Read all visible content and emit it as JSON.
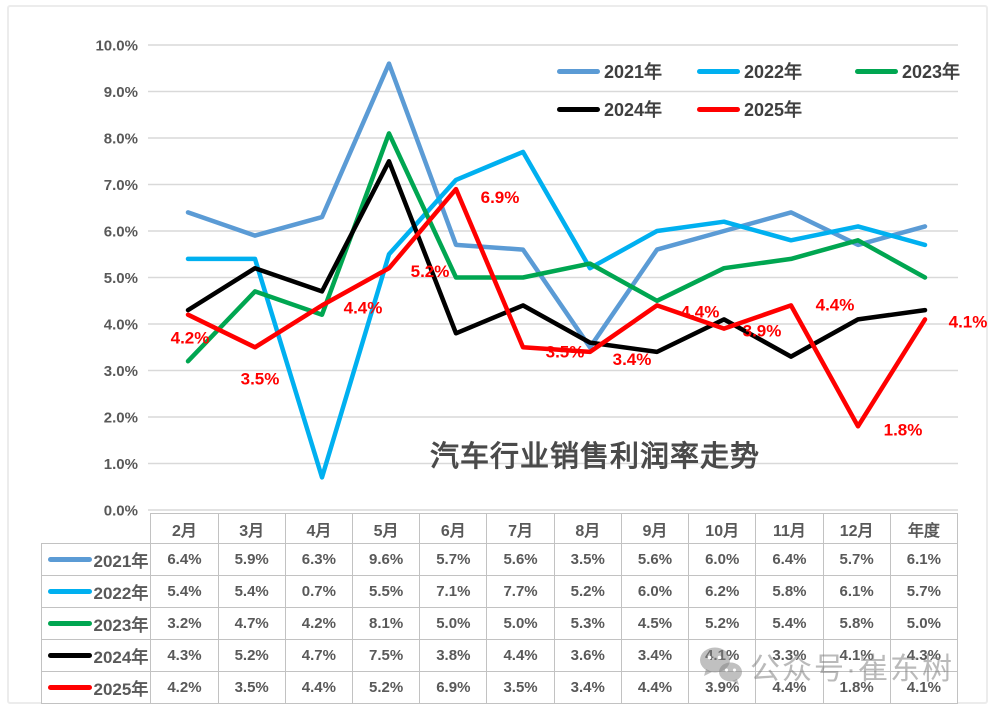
{
  "chart_data": {
    "type": "line",
    "title": "汽车行业销售利润率走势",
    "categories": [
      "2月",
      "3月",
      "4月",
      "5月",
      "6月",
      "7月",
      "8月",
      "9月",
      "10月",
      "11月",
      "12月",
      "年度"
    ],
    "y_axis": {
      "min": 0,
      "max": 10,
      "tick_labels": [
        "0.0%",
        "1.0%",
        "2.0%",
        "3.0%",
        "4.0%",
        "5.0%",
        "6.0%",
        "7.0%",
        "8.0%",
        "9.0%",
        "10.0%"
      ]
    },
    "grid": true,
    "legend_position": "top-right-inside-two-rows",
    "series": [
      {
        "name": "2021年",
        "color": "#5B9BD5",
        "values": [
          6.4,
          5.9,
          6.3,
          9.6,
          5.7,
          5.6,
          3.5,
          5.6,
          6.0,
          6.4,
          5.7,
          6.1
        ]
      },
      {
        "name": "2022年",
        "color": "#00B0F0",
        "values": [
          5.4,
          5.4,
          0.7,
          5.5,
          7.1,
          7.7,
          5.2,
          6.0,
          6.2,
          5.8,
          6.1,
          5.7
        ]
      },
      {
        "name": "2023年",
        "color": "#00A651",
        "values": [
          3.2,
          4.7,
          4.2,
          8.1,
          5.0,
          5.0,
          5.3,
          4.5,
          5.2,
          5.4,
          5.8,
          5.0
        ]
      },
      {
        "name": "2024年",
        "color": "#000000",
        "values": [
          4.3,
          5.2,
          4.7,
          7.5,
          3.8,
          4.4,
          3.6,
          3.4,
          4.1,
          3.3,
          4.1,
          4.3
        ]
      },
      {
        "name": "2025年",
        "color": "#FF0000",
        "values": [
          4.2,
          3.5,
          4.4,
          5.2,
          6.9,
          3.5,
          3.4,
          4.4,
          3.9,
          4.4,
          1.8,
          4.1
        ]
      }
    ],
    "data_labels": {
      "series": "2025年",
      "color": "#FF0000",
      "labels": [
        "4.2%",
        "3.5%",
        "4.4%",
        "5.2%",
        "6.9%",
        "3.5%",
        "3.4%",
        "4.4%",
        "3.9%",
        "4.4%",
        "1.8%",
        "4.1%"
      ]
    }
  },
  "table": {
    "col_headers": [
      "2月",
      "3月",
      "4月",
      "5月",
      "6月",
      "7月",
      "8月",
      "9月",
      "10月",
      "11月",
      "12月",
      "年度"
    ],
    "rows": [
      {
        "label": "2021年",
        "color": "#5B9BD5",
        "values": [
          "6.4%",
          "5.9%",
          "6.3%",
          "9.6%",
          "5.7%",
          "5.6%",
          "3.5%",
          "5.6%",
          "6.0%",
          "6.4%",
          "5.7%",
          "6.1%"
        ]
      },
      {
        "label": "2022年",
        "color": "#00B0F0",
        "values": [
          "5.4%",
          "5.4%",
          "0.7%",
          "5.5%",
          "7.1%",
          "7.7%",
          "5.2%",
          "6.0%",
          "6.2%",
          "5.8%",
          "6.1%",
          "5.7%"
        ]
      },
      {
        "label": "2023年",
        "color": "#00A651",
        "values": [
          "3.2%",
          "4.7%",
          "4.2%",
          "8.1%",
          "5.0%",
          "5.0%",
          "5.3%",
          "4.5%",
          "5.2%",
          "5.4%",
          "5.8%",
          "5.0%"
        ]
      },
      {
        "label": "2024年",
        "color": "#000000",
        "values": [
          "4.3%",
          "5.2%",
          "4.7%",
          "7.5%",
          "3.8%",
          "4.4%",
          "3.6%",
          "3.4%",
          "4.1%",
          "3.3%",
          "4.1%",
          "4.3%"
        ]
      },
      {
        "label": "2025年",
        "color": "#FF0000",
        "values": [
          "4.2%",
          "3.5%",
          "4.4%",
          "5.2%",
          "6.9%",
          "3.5%",
          "3.4%",
          "4.4%",
          "3.9%",
          "4.4%",
          "1.8%",
          "4.1%"
        ]
      }
    ]
  },
  "watermark": {
    "icon": "wechat-icon",
    "text": "公众号·崔东树"
  }
}
